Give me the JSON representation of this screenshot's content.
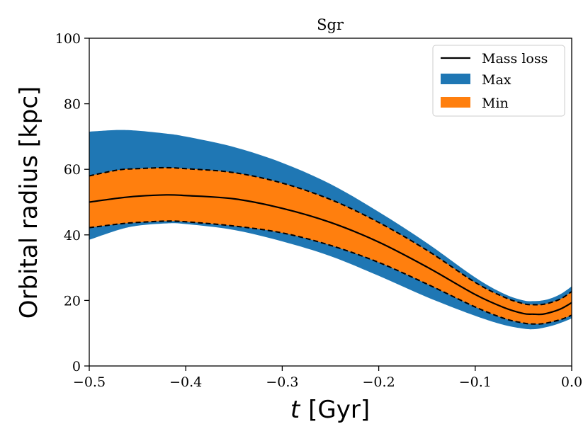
{
  "chart_data": {
    "type": "area",
    "title": "Sgr",
    "xlabel_var": "t",
    "xlabel_unit": "[Gyr]",
    "ylabel": "Orbital radius [kpc]",
    "xlim": [
      -0.5,
      0.0
    ],
    "ylim": [
      0,
      100
    ],
    "xticks": [
      -0.5,
      -0.4,
      -0.3,
      -0.2,
      -0.1,
      0.0
    ],
    "xtick_labels": [
      "−0.5",
      "−0.4",
      "−0.3",
      "−0.2",
      "−0.1",
      "0.0"
    ],
    "yticks": [
      0,
      20,
      40,
      60,
      80,
      100
    ],
    "ytick_labels": [
      "0",
      "20",
      "40",
      "60",
      "80",
      "100"
    ],
    "legend_position": "top-right",
    "legend": [
      {
        "label": "Mass loss",
        "kind": "line",
        "color": "#000000"
      },
      {
        "label": "Max",
        "kind": "patch",
        "color": "#1f77b4"
      },
      {
        "label": "Min",
        "kind": "patch",
        "color": "#ff7f0e"
      }
    ],
    "x": [
      -0.5,
      -0.47,
      -0.45,
      -0.42,
      -0.4,
      -0.35,
      -0.3,
      -0.25,
      -0.2,
      -0.15,
      -0.1,
      -0.07,
      -0.05,
      -0.04,
      -0.03,
      -0.02,
      -0.01,
      0.0
    ],
    "max_band": {
      "upper": [
        71.5,
        72.0,
        71.8,
        70.9,
        70.0,
        66.8,
        62.0,
        55.5,
        47.0,
        37.5,
        27.0,
        22.0,
        20.0,
        19.8,
        20.0,
        20.8,
        22.2,
        24.3
      ],
      "lower": [
        38.5,
        41.5,
        42.8,
        43.5,
        43.3,
        41.5,
        38.0,
        33.5,
        27.5,
        21.0,
        15.3,
        12.5,
        11.4,
        11.2,
        11.6,
        12.3,
        13.3,
        14.5
      ]
    },
    "min_band": {
      "upper": [
        58.0,
        59.8,
        60.2,
        60.5,
        60.2,
        59.0,
        55.8,
        50.8,
        43.8,
        35.3,
        25.5,
        21.0,
        19.0,
        18.7,
        18.8,
        19.5,
        20.7,
        22.7
      ],
      "lower": [
        42.2,
        43.3,
        43.8,
        44.2,
        44.0,
        42.7,
        40.6,
        36.8,
        31.6,
        25.0,
        18.0,
        14.5,
        13.1,
        12.8,
        12.9,
        13.5,
        14.3,
        15.5
      ]
    },
    "mass_loss": [
      50.0,
      51.2,
      51.8,
      52.2,
      52.0,
      51.0,
      48.1,
      43.8,
      37.8,
      30.2,
      21.8,
      17.8,
      16.0,
      15.8,
      15.8,
      16.5,
      17.6,
      19.3
    ]
  }
}
